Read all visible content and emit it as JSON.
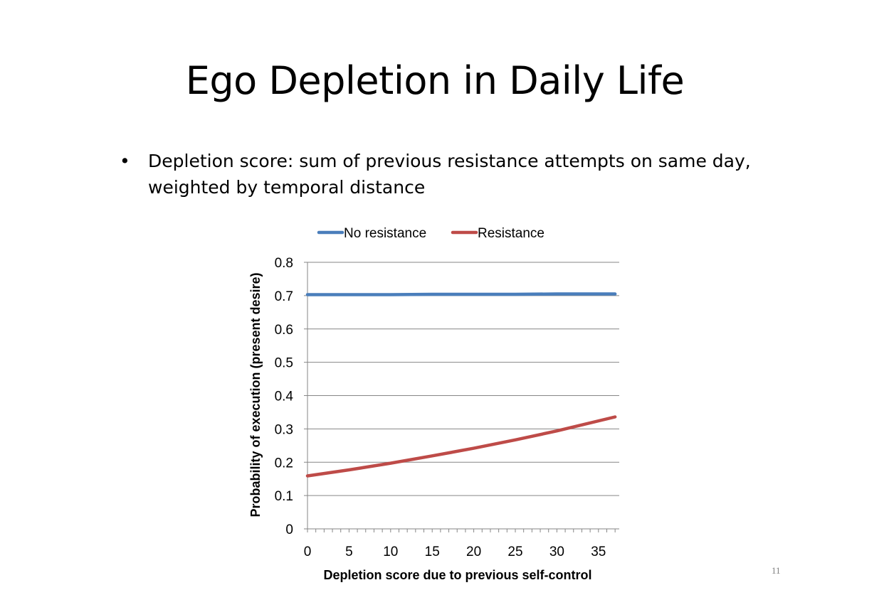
{
  "slide": {
    "title": "Ego Depletion in Daily Life",
    "bullet": "Depletion score: sum of previous resistance attempts on same day, weighted by temporal distance",
    "page_number": "11"
  },
  "chart_data": {
    "type": "line",
    "xlabel": "Depletion score due to previous self-control",
    "ylabel": "Probability of execution (present desire)",
    "xlim": [
      0,
      37.5
    ],
    "ylim": [
      0,
      0.8
    ],
    "xticks": [
      0,
      5,
      10,
      15,
      20,
      25,
      30,
      35
    ],
    "yticks": [
      0,
      0.1,
      0.2,
      0.3,
      0.4,
      0.5,
      0.6,
      0.7,
      0.8
    ],
    "ytick_labels": [
      "0",
      "0.1",
      "0.2",
      "0.3",
      "0.4",
      "0.5",
      "0.6",
      "0.7",
      "0.8"
    ],
    "grid": true,
    "legend_position": "top",
    "series": [
      {
        "name": "No resistance",
        "color": "#4a7ebb",
        "x": [
          0,
          5,
          10,
          15,
          20,
          25,
          30,
          37
        ],
        "y": [
          0.703,
          0.703,
          0.703,
          0.704,
          0.704,
          0.704,
          0.705,
          0.705
        ]
      },
      {
        "name": "Resistance",
        "color": "#be4b48",
        "x": [
          0,
          5,
          10,
          15,
          20,
          25,
          30,
          37
        ],
        "y": [
          0.159,
          0.177,
          0.197,
          0.219,
          0.242,
          0.267,
          0.294,
          0.336
        ]
      }
    ]
  }
}
